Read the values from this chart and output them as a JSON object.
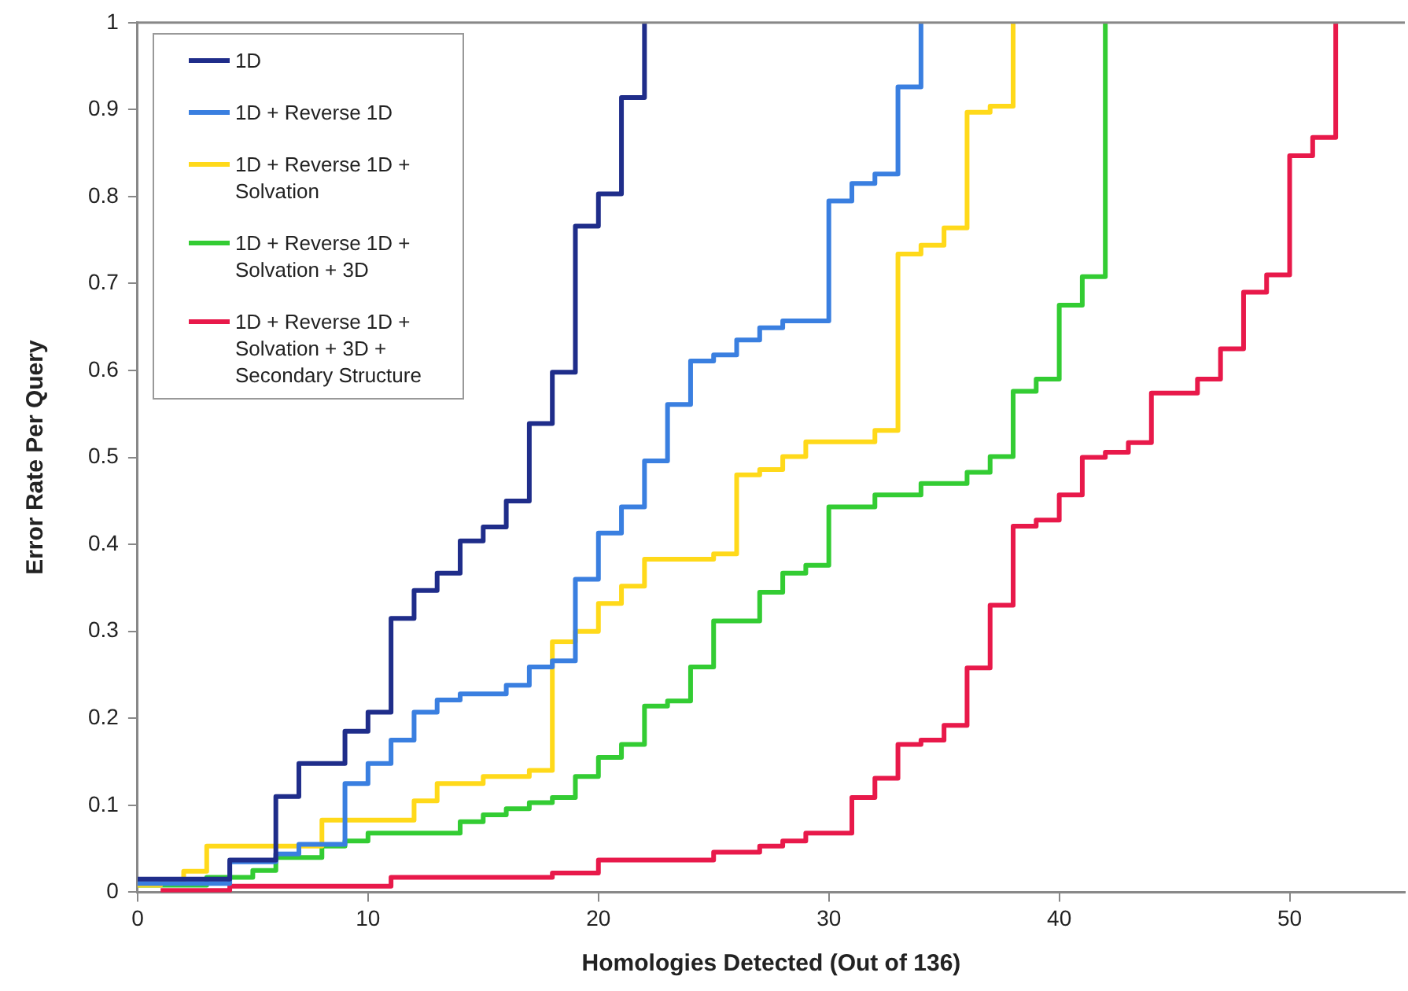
{
  "chart_data": {
    "type": "step",
    "xlabel": "Homologies Detected (Out of 136)",
    "ylabel": "Error Rate Per Query",
    "xlim": [
      0,
      55
    ],
    "xticks": [
      0,
      10,
      20,
      30,
      40,
      50
    ],
    "ylim": [
      0,
      1
    ],
    "yticks": [
      0,
      0.1,
      0.2,
      0.3,
      0.4,
      0.5,
      0.6,
      0.7,
      0.8,
      0.9,
      1
    ],
    "legend": "top left",
    "series": [
      {
        "name": "1D",
        "color": "#1f2d8a",
        "x": [
          0,
          4,
          6,
          7,
          9,
          10,
          11,
          12,
          13,
          14,
          15,
          16,
          17,
          18,
          19,
          20,
          21,
          22
        ],
        "values": [
          0.015,
          0.037,
          0.11,
          0.148,
          0.185,
          0.207,
          0.315,
          0.347,
          0.367,
          0.404,
          0.42,
          0.45,
          0.539,
          0.598,
          0.766,
          0.803,
          0.914,
          1
        ]
      },
      {
        "name": "1D + Reverse 1D",
        "color": "#3a7fe0",
        "x": [
          0,
          4,
          6,
          7,
          9,
          10,
          11,
          12,
          13,
          14,
          16,
          17,
          18,
          19,
          20,
          21,
          22,
          23,
          24,
          25,
          26,
          27,
          28,
          30,
          31,
          32,
          33,
          34
        ],
        "values": [
          0.01,
          0.035,
          0.044,
          0.055,
          0.125,
          0.148,
          0.175,
          0.207,
          0.221,
          0.228,
          0.238,
          0.259,
          0.266,
          0.36,
          0.413,
          0.443,
          0.496,
          0.561,
          0.611,
          0.618,
          0.635,
          0.649,
          0.657,
          0.795,
          0.815,
          0.826,
          0.926,
          1
        ]
      },
      {
        "name": "1D + Reverse 1D + Solvation",
        "color": "#ffd91a",
        "x": [
          0,
          1,
          2,
          3,
          8,
          12,
          13,
          15,
          17,
          18,
          19,
          20,
          21,
          22,
          25,
          26,
          27,
          28,
          29,
          32,
          33,
          34,
          35,
          36,
          37,
          38
        ],
        "values": [
          0.008,
          0.012,
          0.024,
          0.053,
          0.083,
          0.105,
          0.125,
          0.133,
          0.14,
          0.288,
          0.3,
          0.332,
          0.352,
          0.383,
          0.389,
          0.48,
          0.486,
          0.501,
          0.518,
          0.531,
          0.734,
          0.744,
          0.764,
          0.897,
          0.904,
          1
        ]
      },
      {
        "name": "1D + Reverse 1D + Solvation + 3D",
        "color": "#33cc33",
        "x": [
          0,
          3,
          5,
          6,
          8,
          9,
          10,
          14,
          15,
          16,
          17,
          18,
          19,
          20,
          21,
          22,
          23,
          24,
          25,
          27,
          28,
          29,
          30,
          32,
          34,
          36,
          37,
          38,
          39,
          40,
          41,
          42
        ],
        "values": [
          0.008,
          0.017,
          0.025,
          0.04,
          0.053,
          0.059,
          0.068,
          0.081,
          0.089,
          0.096,
          0.103,
          0.109,
          0.133,
          0.155,
          0.17,
          0.214,
          0.22,
          0.259,
          0.312,
          0.345,
          0.367,
          0.376,
          0.443,
          0.457,
          0.47,
          0.483,
          0.501,
          0.576,
          0.59,
          0.675,
          0.708,
          1
        ]
      },
      {
        "name": "1D + Reverse 1D + Solvation + 3D + Secondary Structure",
        "color": "#e8194a",
        "x": [
          1,
          4,
          11,
          18,
          20,
          25,
          27,
          28,
          29,
          31,
          32,
          33,
          34,
          35,
          36,
          37,
          38,
          39,
          40,
          41,
          42,
          43,
          44,
          46,
          47,
          48,
          49,
          50,
          51,
          52
        ],
        "values": [
          0.002,
          0.007,
          0.017,
          0.022,
          0.037,
          0.046,
          0.053,
          0.059,
          0.068,
          0.109,
          0.131,
          0.17,
          0.175,
          0.192,
          0.258,
          0.33,
          0.421,
          0.428,
          0.457,
          0.5,
          0.506,
          0.517,
          0.574,
          0.59,
          0.625,
          0.69,
          0.71,
          0.847,
          0.868,
          1
        ]
      }
    ]
  }
}
